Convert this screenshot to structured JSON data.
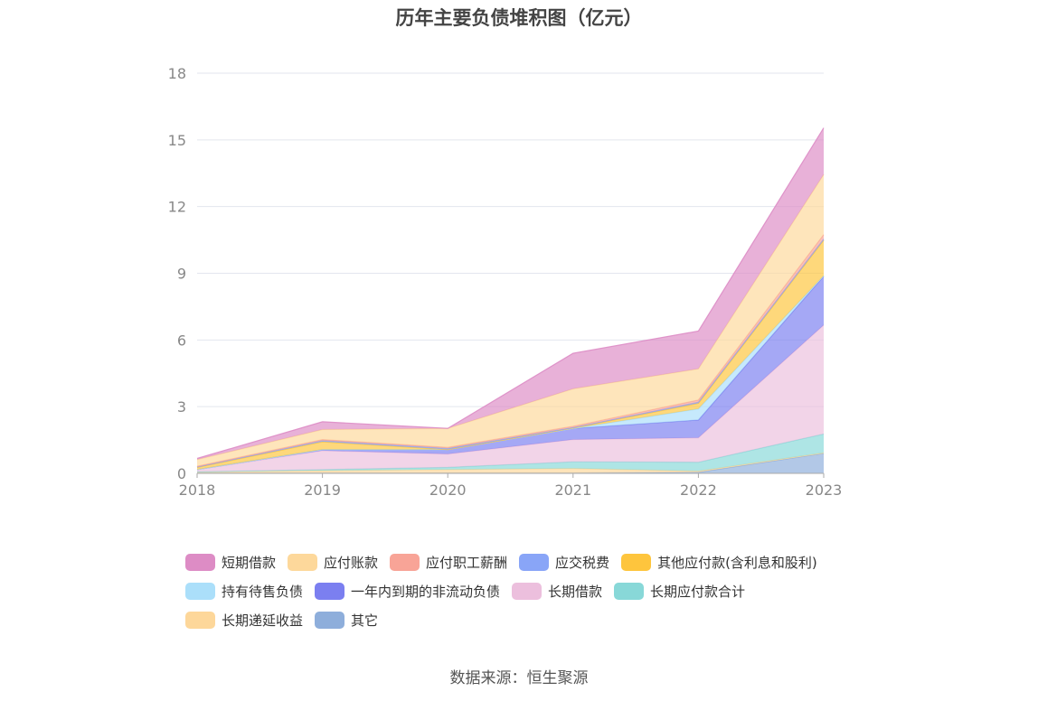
{
  "chart_data": {
    "type": "area",
    "title": "历年主要负债堆积图（亿元）",
    "categories": [
      "2018",
      "2019",
      "2020",
      "2021",
      "2022",
      "2023"
    ],
    "ylim": [
      0,
      18
    ],
    "yticks": [
      0,
      3,
      6,
      9,
      12,
      15,
      18
    ],
    "grid": true,
    "legend_position": "bottom",
    "stacked": true,
    "series": [
      {
        "name": "其它",
        "color": "#8eaedb",
        "values": [
          0.02,
          0.02,
          0.02,
          0.02,
          0.05,
          0.9
        ]
      },
      {
        "name": "长期递延收益",
        "color": "#fdd79a",
        "values": [
          0.05,
          0.1,
          0.15,
          0.2,
          0.05,
          0.02
        ]
      },
      {
        "name": "长期应付款合计",
        "color": "#88d8d8",
        "values": [
          0.0,
          0.05,
          0.1,
          0.3,
          0.4,
          0.85
        ]
      },
      {
        "name": "长期借款",
        "color": "#ecbfdd",
        "values": [
          0.1,
          0.85,
          0.6,
          1.0,
          1.1,
          4.9
        ]
      },
      {
        "name": "一年内到期的非流动负债",
        "color": "#7b7ff0",
        "values": [
          0.0,
          0.05,
          0.2,
          0.5,
          0.8,
          2.2
        ]
      },
      {
        "name": "持有待售负债",
        "color": "#abdffa",
        "values": [
          0.0,
          0.0,
          0.0,
          0.0,
          0.5,
          0.02
        ]
      },
      {
        "name": "其他应付款(含利息和股利)",
        "color": "#fec53d",
        "values": [
          0.1,
          0.35,
          0.0,
          0.02,
          0.25,
          1.6
        ]
      },
      {
        "name": "应交税费",
        "color": "#89a5f7",
        "values": [
          0.02,
          0.05,
          0.05,
          0.02,
          0.05,
          0.05
        ]
      },
      {
        "name": "应付职工薪酬",
        "color": "#f8a497",
        "values": [
          0.03,
          0.05,
          0.05,
          0.06,
          0.1,
          0.2
        ]
      },
      {
        "name": "应付账款",
        "color": "#fdd89b",
        "values": [
          0.3,
          0.45,
          0.85,
          1.68,
          1.4,
          2.7
        ]
      },
      {
        "name": "短期借款",
        "color": "#dd8cc5",
        "values": [
          0.05,
          0.35,
          0.0,
          1.6,
          1.7,
          2.1
        ]
      }
    ],
    "legend_rows": [
      [
        "短期借款",
        "应付账款",
        "应付职工薪酬",
        "应交税费",
        "其他应付款(含利息和股利)"
      ],
      [
        "持有待售负债",
        "一年内到期的非流动负债",
        "长期借款",
        "长期应付款合计"
      ],
      [
        "长期递延收益",
        "其它"
      ]
    ]
  },
  "source": "数据来源：恒生聚源"
}
